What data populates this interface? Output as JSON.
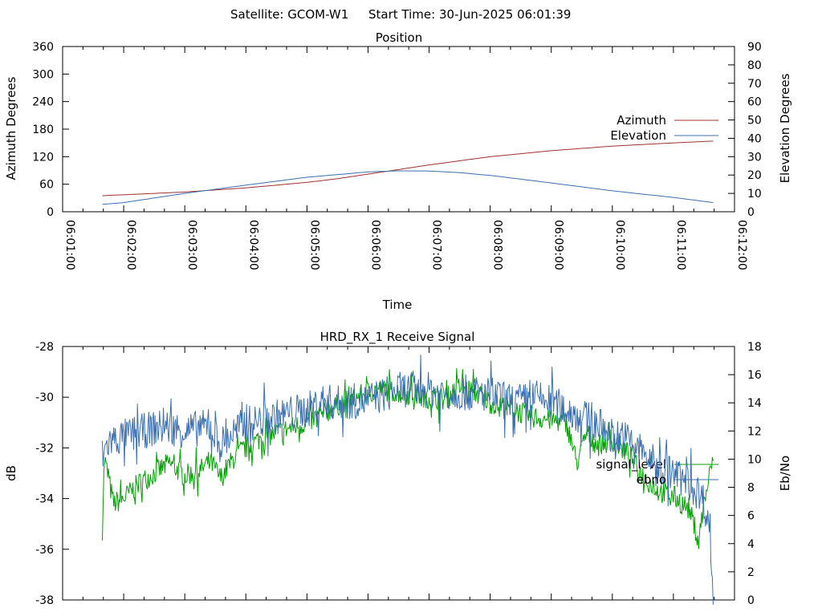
{
  "header": {
    "satellite_text": "Satellite: GCOM-W1",
    "start_time_text": "Start Time: 30-Jun-2025 06:01:39"
  },
  "chart_data": [
    {
      "type": "line",
      "title": "Position",
      "xlabel": "Time",
      "ylabel": "Azimuth Degrees",
      "y2label": "Elevation Degrees",
      "ylim": [
        0,
        360
      ],
      "y2lim": [
        0,
        90
      ],
      "yticks": [
        0,
        60,
        120,
        180,
        240,
        300,
        360
      ],
      "y2ticks": [
        0,
        10,
        20,
        30,
        40,
        50,
        60,
        70,
        80,
        90
      ],
      "xlim": [
        "06:01:00",
        "06:12:00"
      ],
      "xticks": [
        "06:01:00",
        "06:02:00",
        "06:03:00",
        "06:04:00",
        "06:05:00",
        "06:06:00",
        "06:07:00",
        "06:08:00",
        "06:09:00",
        "06:10:00",
        "06:11:00",
        "06:12:00"
      ],
      "grid": false,
      "legend": "right",
      "series": [
        {
          "name": "Azimuth",
          "axis": "left",
          "color": "#a0302f",
          "x": [
            "06:01:39",
            "06:02:00",
            "06:03:00",
            "06:04:00",
            "06:05:00",
            "06:05:30",
            "06:06:00",
            "06:06:30",
            "06:07:00",
            "06:07:30",
            "06:08:00",
            "06:09:00",
            "06:10:00",
            "06:11:00",
            "06:11:39"
          ],
          "y": [
            35,
            37,
            43,
            52,
            64,
            72,
            82,
            92,
            102,
            111,
            120,
            133,
            143,
            150,
            154
          ]
        },
        {
          "name": "Elevation",
          "axis": "right",
          "color": "#3a6fb0",
          "x": [
            "06:01:39",
            "06:02:00",
            "06:03:00",
            "06:04:00",
            "06:05:00",
            "06:06:00",
            "06:06:30",
            "06:07:00",
            "06:07:30",
            "06:08:00",
            "06:09:00",
            "06:10:00",
            "06:11:00",
            "06:11:39"
          ],
          "y": [
            4,
            5,
            10,
            14.5,
            18.8,
            21.7,
            22.3,
            22.2,
            21.3,
            19.8,
            15.7,
            11.4,
            7.8,
            5
          ]
        }
      ]
    },
    {
      "type": "line",
      "title": "HRD_RX_1 Receive Signal",
      "ylabel": "dB",
      "y2label": "Eb/No",
      "ylim": [
        -38,
        -28
      ],
      "y2lim": [
        0,
        18
      ],
      "yticks": [
        -38,
        -36,
        -34,
        -32,
        -30,
        -28
      ],
      "y2ticks": [
        0,
        2,
        4,
        6,
        8,
        10,
        12,
        14,
        16,
        18
      ],
      "xlim": [
        "06:01:00",
        "06:12:00"
      ],
      "grid": false,
      "legend": "right",
      "series": [
        {
          "name": "signal_level",
          "axis": "left",
          "color": "#00a000",
          "x": [
            "06:01:39",
            "06:01:41",
            "06:01:50",
            "06:02:00",
            "06:02:15",
            "06:02:30",
            "06:02:45",
            "06:03:00",
            "06:03:15",
            "06:03:25",
            "06:03:35",
            "06:03:50",
            "06:04:00",
            "06:04:15",
            "06:04:30",
            "06:04:45",
            "06:05:00",
            "06:05:15",
            "06:05:30",
            "06:05:45",
            "06:06:00",
            "06:06:15",
            "06:06:30",
            "06:06:45",
            "06:07:00",
            "06:07:15",
            "06:07:30",
            "06:07:45",
            "06:08:00",
            "06:08:15",
            "06:08:30",
            "06:08:45",
            "06:09:00",
            "06:09:15",
            "06:09:25",
            "06:09:35",
            "06:09:45",
            "06:10:00",
            "06:10:15",
            "06:10:30",
            "06:10:45",
            "06:11:00",
            "06:11:15",
            "06:11:25",
            "06:11:30",
            "06:11:39"
          ],
          "y": [
            -35.2,
            -32.4,
            -34.2,
            -34.0,
            -33.4,
            -33.0,
            -32.6,
            -33.1,
            -32.9,
            -32.5,
            -33.2,
            -32.3,
            -32.0,
            -31.6,
            -31.4,
            -31.2,
            -31.0,
            -30.7,
            -30.3,
            -30.1,
            -29.8,
            -29.7,
            -29.8,
            -29.9,
            -30.0,
            -30.1,
            -29.6,
            -29.8,
            -30.2,
            -30.4,
            -30.6,
            -30.8,
            -30.9,
            -31.0,
            -32.6,
            -31.4,
            -31.9,
            -31.7,
            -32.2,
            -33.1,
            -33.7,
            -33.9,
            -34.4,
            -35.6,
            -34.2,
            -32.4
          ]
        },
        {
          "name": "ebno",
          "axis": "right",
          "color": "#3a6fb0",
          "x": [
            "06:01:39",
            "06:01:45",
            "06:02:00",
            "06:02:15",
            "06:02:30",
            "06:02:45",
            "06:03:00",
            "06:03:15",
            "06:03:25",
            "06:03:35",
            "06:03:50",
            "06:04:00",
            "06:04:15",
            "06:04:30",
            "06:04:45",
            "06:05:00",
            "06:05:15",
            "06:05:30",
            "06:05:45",
            "06:06:00",
            "06:06:15",
            "06:06:30",
            "06:06:45",
            "06:07:00",
            "06:07:15",
            "06:07:30",
            "06:07:45",
            "06:08:00",
            "06:08:15",
            "06:08:30",
            "06:08:45",
            "06:09:00",
            "06:09:15",
            "06:09:30",
            "06:09:45",
            "06:10:00",
            "06:10:15",
            "06:10:30",
            "06:10:45",
            "06:11:00",
            "06:11:15",
            "06:11:25",
            "06:11:30",
            "06:11:36",
            "06:11:39"
          ],
          "y": [
            10.2,
            11.2,
            11.6,
            11.9,
            12.2,
            12.3,
            12.0,
            12.2,
            12.3,
            11.0,
            12.0,
            12.5,
            12.7,
            13.0,
            13.3,
            13.5,
            14.1,
            14.0,
            14.1,
            14.2,
            14.6,
            14.9,
            15.0,
            14.9,
            14.7,
            14.8,
            14.6,
            14.6,
            14.2,
            14.1,
            14.4,
            14.0,
            13.5,
            13.0,
            12.5,
            11.7,
            11.4,
            10.5,
            9.4,
            9.0,
            8.3,
            7.6,
            7.0,
            5.0,
            0.2
          ]
        }
      ]
    }
  ]
}
